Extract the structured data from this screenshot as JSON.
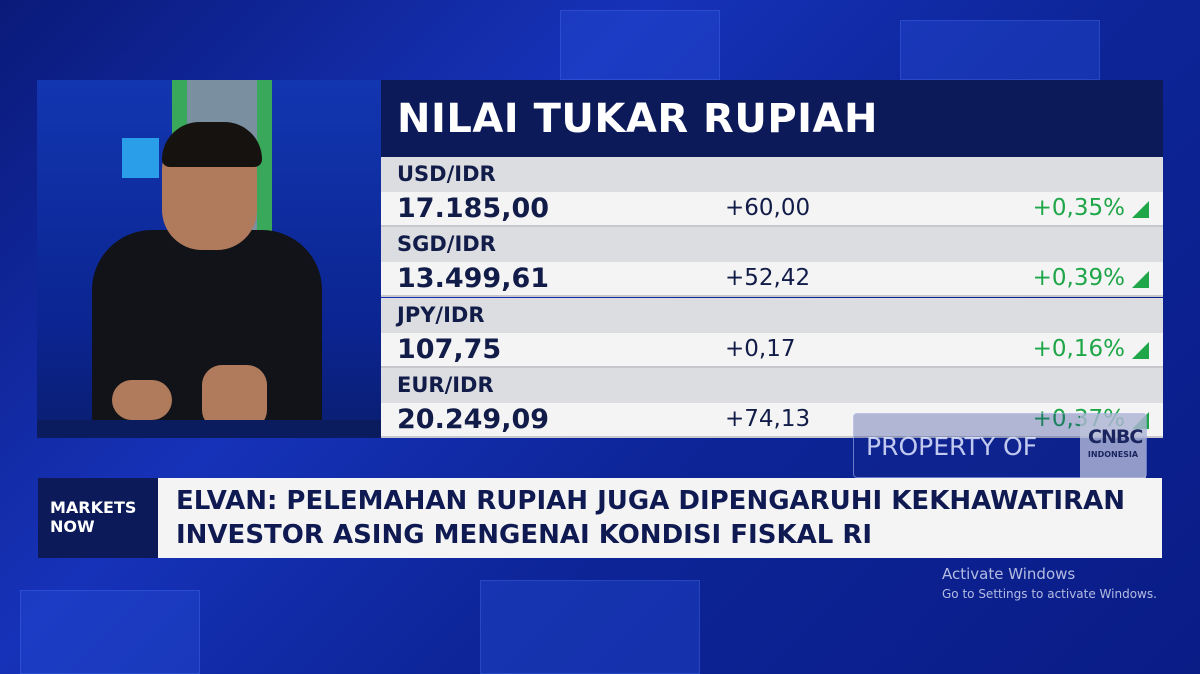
{
  "panel": {
    "title": "NILAI TUKAR RUPIAH",
    "rows": [
      {
        "pair": "USD/IDR",
        "value": "17.185,00",
        "change": "+60,00",
        "percent": "+0,35%",
        "direction": "up"
      },
      {
        "pair": "SGD/IDR",
        "value": "13.499,61",
        "change": "+52,42",
        "percent": "+0,39%",
        "direction": "up"
      },
      {
        "pair": "JPY/IDR",
        "value": "107,75",
        "change": "+0,17",
        "percent": "+0,16%",
        "direction": "up"
      },
      {
        "pair": "EUR/IDR",
        "value": "20.249,09",
        "change": "+74,13",
        "percent": "+0,37%",
        "direction": "up"
      }
    ]
  },
  "watermark": {
    "text": "PROPERTY OF",
    "logo": "CNBC INDONESIA"
  },
  "ticker": {
    "tag_line1": "MARKETS",
    "tag_line2": "NOW",
    "line1": "ELVAN: PELEMAHAN RUPIAH JUGA DIPENGARUHI KEKHAWATIRAN",
    "line2": "INVESTOR ASING MENGENAI KONDISI FISKAL RI"
  },
  "activation": {
    "title": "Activate Windows",
    "subtitle": "Go to Settings to activate Windows."
  },
  "colors": {
    "navy": "#0c1a5a",
    "positive": "#1fa648"
  }
}
